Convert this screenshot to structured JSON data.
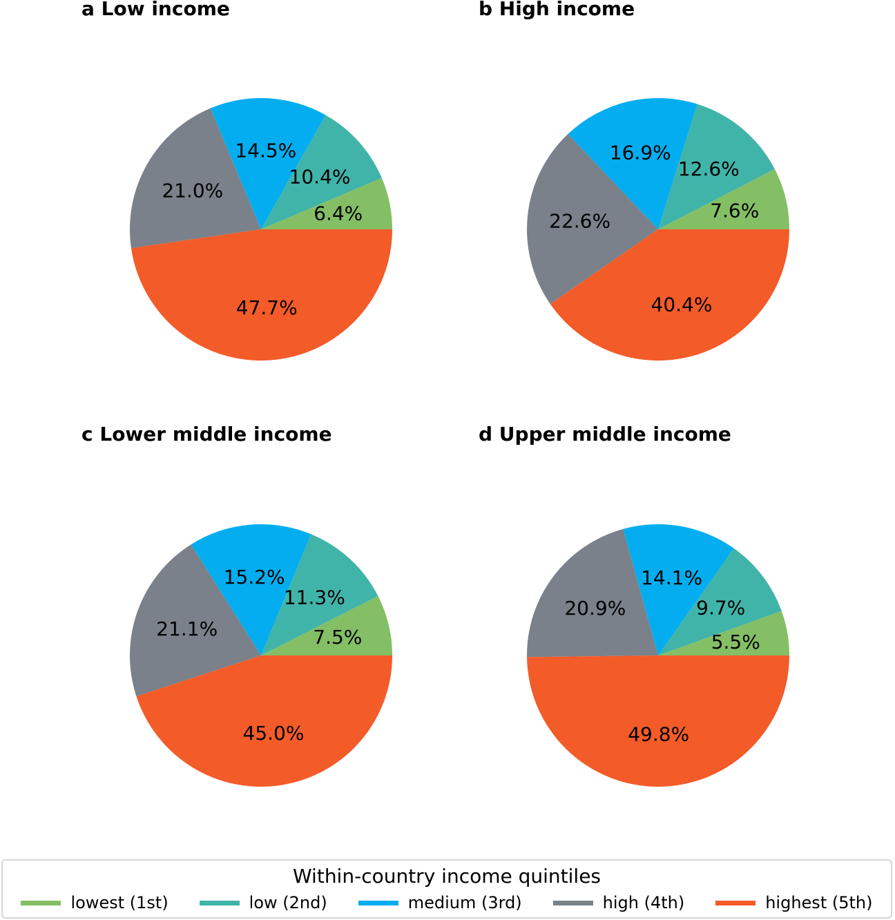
{
  "colors": {
    "lowest": "#84bf65",
    "low": "#41b4aa",
    "medium": "#04adef",
    "high": "#7a818a",
    "highest": "#f35b29"
  },
  "legend": {
    "title": "Within-country income quintiles",
    "items": [
      {
        "label": "lowest (1st)",
        "color": "#84bf65"
      },
      {
        "label": "low (2nd)",
        "color": "#41b4aa"
      },
      {
        "label": "medium (3rd)",
        "color": "#04adef"
      },
      {
        "label": "high (4th)",
        "color": "#7a818a"
      },
      {
        "label": "highest (5th)",
        "color": "#f35b29"
      }
    ]
  },
  "chart_data": [
    {
      "type": "pie",
      "title": "a Low income",
      "categories": [
        "lowest (1st)",
        "low (2nd)",
        "medium (3rd)",
        "high (4th)",
        "highest (5th)"
      ],
      "values": [
        6.4,
        10.4,
        14.5,
        21.0,
        47.7
      ],
      "labels": [
        "6.4%",
        "10.4%",
        "14.5%",
        "21.0%",
        "47.7%"
      ]
    },
    {
      "type": "pie",
      "title": "b High income",
      "categories": [
        "lowest (1st)",
        "low (2nd)",
        "medium (3rd)",
        "high (4th)",
        "highest (5th)"
      ],
      "values": [
        7.6,
        12.6,
        16.9,
        22.6,
        40.4
      ],
      "labels": [
        "7.6%",
        "12.6%",
        "16.9%",
        "22.6%",
        "40.4%"
      ]
    },
    {
      "type": "pie",
      "title": "c Lower middle income",
      "categories": [
        "lowest (1st)",
        "low (2nd)",
        "medium (3rd)",
        "high (4th)",
        "highest (5th)"
      ],
      "values": [
        7.5,
        11.3,
        15.2,
        21.1,
        45.0
      ],
      "labels": [
        "7.5%",
        "11.3%",
        "15.2%",
        "21.1%",
        "45.0%"
      ]
    },
    {
      "type": "pie",
      "title": "d Upper middle income",
      "categories": [
        "lowest (1st)",
        "low (2nd)",
        "medium (3rd)",
        "high (4th)",
        "highest (5th)"
      ],
      "values": [
        5.5,
        9.7,
        14.1,
        20.9,
        49.8
      ],
      "labels": [
        "5.5%",
        "9.7%",
        "14.1%",
        "20.9%",
        "49.8%"
      ]
    }
  ]
}
